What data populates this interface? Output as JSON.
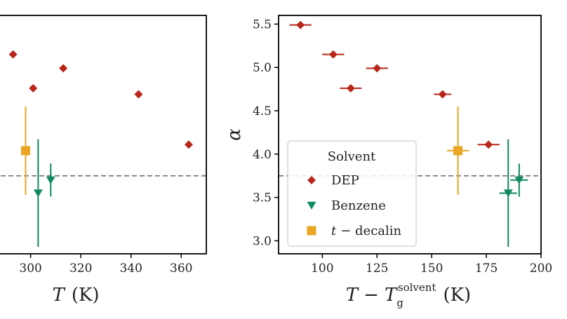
{
  "chart_data": [
    {
      "type": "scatter",
      "xlabel": "T (K)",
      "xlabel_parts": {
        "var": "T",
        "unit": "(K)"
      },
      "xlim": [
        285,
        370
      ],
      "ylim": [
        2.85,
        5.6
      ],
      "x_ticks": [
        300,
        320,
        340,
        360
      ],
      "y_ticks": [],
      "reference_line": {
        "y": 3.75,
        "style": "dashed",
        "color": "#777777"
      },
      "series": [
        {
          "name": "DEP",
          "marker": "diamond",
          "color": "#b8271a",
          "points": [
            {
              "x": 293,
              "y": 5.15
            },
            {
              "x": 301,
              "y": 4.76
            },
            {
              "x": 313,
              "y": 4.99
            },
            {
              "x": 343,
              "y": 4.69
            },
            {
              "x": 363,
              "y": 4.11
            }
          ]
        },
        {
          "name": "Benzene",
          "marker": "triangle-down",
          "color": "#0f8a5f",
          "points": [
            {
              "x": 303,
              "y": 3.55,
              "yerr": 0.62
            },
            {
              "x": 308,
              "y": 3.7,
              "yerr": 0.19
            }
          ]
        },
        {
          "name": "t-decalin",
          "marker": "square",
          "color": "#e8a623",
          "points": [
            {
              "x": 298,
              "y": 4.04,
              "yerr": 0.51
            }
          ]
        }
      ]
    },
    {
      "type": "scatter",
      "xlabel": "T − T_g^solvent (K)",
      "xlabel_parts": {
        "var": "T",
        "minus": "−",
        "var2": "T",
        "sub": "g",
        "sup": "solvent",
        "unit": "(K)"
      },
      "ylabel": "α",
      "xlim": [
        80,
        200
      ],
      "ylim": [
        2.85,
        5.6
      ],
      "x_ticks": [
        100,
        125,
        150,
        175,
        200
      ],
      "y_ticks": [
        3.0,
        3.5,
        4.0,
        4.5,
        5.0,
        5.5
      ],
      "reference_line": {
        "y": 3.75,
        "style": "dashed",
        "color": "#777777"
      },
      "series": [
        {
          "name": "DEP",
          "marker": "diamond",
          "color": "#b8271a",
          "points": [
            {
              "x": 90,
              "y": 5.49,
              "xerr": 5
            },
            {
              "x": 105,
              "y": 5.15,
              "xerr": 5
            },
            {
              "x": 113,
              "y": 4.76,
              "xerr": 5
            },
            {
              "x": 125,
              "y": 4.99,
              "xerr": 5
            },
            {
              "x": 155,
              "y": 4.69,
              "xerr": 4
            },
            {
              "x": 176,
              "y": 4.11,
              "xerr": 5
            }
          ]
        },
        {
          "name": "Benzene",
          "marker": "triangle-down",
          "color": "#0f8a5f",
          "points": [
            {
              "x": 185,
              "y": 3.55,
              "xerr": 4,
              "yerr": 0.62
            },
            {
              "x": 190,
              "y": 3.7,
              "xerr": 4,
              "yerr": 0.19
            }
          ]
        },
        {
          "name": "t-decalin",
          "marker": "square",
          "color": "#e8a623",
          "points": [
            {
              "x": 162,
              "y": 4.04,
              "xerr": 5,
              "yerr": 0.51
            }
          ]
        }
      ],
      "legend": {
        "title": "Solvent",
        "placement": "lower-left",
        "entries": [
          {
            "label": "DEP",
            "marker": "diamond",
            "color": "#b8271a"
          },
          {
            "label": "Benzene",
            "marker": "triangle-down",
            "color": "#0f8a5f"
          },
          {
            "label": "t − decalin",
            "label_parts": {
              "italic": "t",
              "rest": "− decalin"
            },
            "marker": "square",
            "color": "#e8a623"
          }
        ]
      }
    }
  ]
}
